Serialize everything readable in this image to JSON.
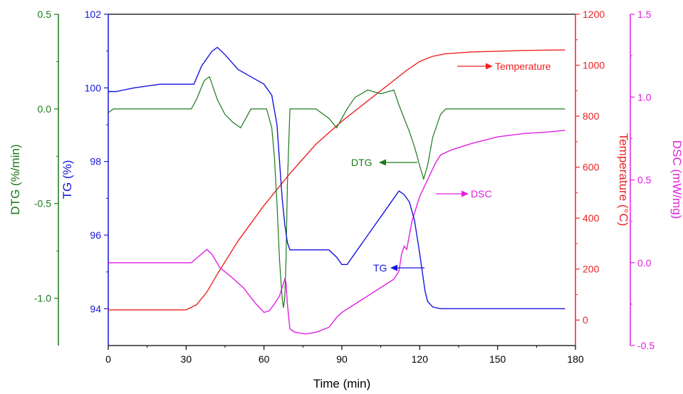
{
  "chart_data": {
    "type": "line",
    "xlabel": "Time (min)",
    "xlim": [
      0,
      180
    ],
    "x_ticks": [
      "0",
      "30",
      "60",
      "90",
      "120",
      "150",
      "180"
    ],
    "colors": {
      "DTG": "#1a7a1a",
      "TG": "#1515e0",
      "Temperature": "#ee2222",
      "DSC": "#e020e0"
    },
    "axes": {
      "DTG": {
        "label": "DTG (%/min)",
        "lim": [
          -1.25,
          0.5
        ],
        "ticks": [
          "0.5",
          "0.0",
          "-0.5",
          "-1.0"
        ],
        "tick_values": [
          0.5,
          0.0,
          -0.5,
          -1.0
        ]
      },
      "TG": {
        "label": "TG (%)",
        "lim": [
          93,
          102
        ],
        "ticks": [
          "102",
          "100",
          "98",
          "96",
          "94"
        ],
        "tick_values": [
          102,
          100,
          98,
          96,
          94
        ]
      },
      "Temperature": {
        "label": "Temperature (°C)",
        "lim": [
          -100,
          1200
        ],
        "ticks": [
          "1200",
          "1000",
          "800",
          "600",
          "400",
          "200",
          "0"
        ],
        "tick_values": [
          1200,
          1000,
          800,
          600,
          400,
          200,
          0
        ]
      },
      "DSC": {
        "label": "DSC (mW/mg)",
        "lim": [
          -0.5,
          1.5
        ],
        "ticks": [
          "1.5",
          "1.0",
          "0.5",
          "0.0",
          "-0.5"
        ],
        "tick_values": [
          1.5,
          1.0,
          0.5,
          0.0,
          -0.5
        ]
      }
    },
    "series": [
      {
        "name": "TG",
        "axis": "TG",
        "x": [
          0,
          3,
          10,
          20,
          33,
          36,
          40,
          42,
          45,
          50,
          55,
          60,
          63,
          65,
          66,
          67,
          68,
          69,
          70,
          75,
          80,
          85,
          88,
          90,
          92,
          95,
          100,
          105,
          110,
          112,
          114,
          116,
          118,
          120,
          121,
          122,
          123,
          125,
          128,
          130,
          140,
          150,
          160,
          176
        ],
        "y": [
          99.9,
          99.9,
          100.0,
          100.1,
          100.1,
          100.6,
          101.0,
          101.1,
          100.9,
          100.5,
          100.3,
          100.1,
          99.8,
          99.0,
          98.0,
          97.0,
          96.3,
          95.8,
          95.6,
          95.6,
          95.6,
          95.6,
          95.4,
          95.2,
          95.2,
          95.5,
          96.0,
          96.5,
          97.0,
          97.2,
          97.1,
          96.9,
          96.4,
          95.5,
          95.0,
          94.5,
          94.2,
          94.05,
          94.0,
          94.0,
          94.0,
          94.0,
          94.0,
          94.0
        ]
      },
      {
        "name": "DTG",
        "axis": "DTG",
        "x": [
          0,
          2,
          10,
          20,
          32,
          34,
          37,
          39,
          42,
          45,
          48,
          51,
          55,
          58,
          61,
          63,
          64,
          65,
          66,
          67,
          67.5,
          68,
          68.5,
          69,
          70,
          72,
          80,
          85,
          88,
          90,
          92,
          95,
          100,
          105,
          110,
          112,
          114,
          116,
          118,
          120,
          121.5,
          123,
          125,
          128,
          130,
          140,
          150,
          160,
          170,
          176
        ],
        "y": [
          -0.02,
          0.0,
          0.0,
          0.0,
          0.0,
          0.05,
          0.15,
          0.17,
          0.05,
          -0.03,
          -0.07,
          -0.1,
          0.0,
          0.0,
          0.0,
          -0.1,
          -0.25,
          -0.5,
          -0.8,
          -1.0,
          -1.05,
          -1.0,
          -0.8,
          -0.4,
          0.0,
          0.0,
          0.0,
          -0.05,
          -0.1,
          -0.05,
          0.0,
          0.06,
          0.1,
          0.08,
          0.1,
          0.02,
          -0.05,
          -0.12,
          -0.2,
          -0.3,
          -0.37,
          -0.3,
          -0.15,
          -0.03,
          0.0,
          0.0,
          0.0,
          0.0,
          0.0,
          0.0
        ]
      },
      {
        "name": "Temperature",
        "axis": "Temperature",
        "x": [
          0,
          30,
          34,
          38,
          42,
          50,
          60,
          70,
          80,
          90,
          100,
          110,
          115,
          120,
          125,
          130,
          140,
          150,
          160,
          176
        ],
        "y": [
          40,
          40,
          60,
          110,
          180,
          310,
          450,
          575,
          690,
          780,
          860,
          940,
          980,
          1015,
          1035,
          1045,
          1052,
          1055,
          1058,
          1060
        ]
      },
      {
        "name": "DSC",
        "axis": "DSC",
        "x": [
          0,
          10,
          20,
          32,
          35,
          38,
          40,
          43,
          47,
          52,
          57,
          60,
          62,
          64,
          66,
          67,
          68,
          68.5,
          69,
          70,
          72,
          76,
          80,
          85,
          88,
          90,
          95,
          100,
          105,
          108,
          110,
          112,
          113,
          114,
          115,
          117,
          120,
          123,
          126,
          128,
          132,
          140,
          150,
          160,
          170,
          176
        ],
        "y": [
          0.0,
          0.0,
          0.0,
          0.0,
          0.04,
          0.08,
          0.05,
          -0.03,
          -0.08,
          -0.15,
          -0.25,
          -0.3,
          -0.29,
          -0.25,
          -0.2,
          -0.15,
          -0.1,
          -0.12,
          -0.25,
          -0.4,
          -0.42,
          -0.43,
          -0.42,
          -0.39,
          -0.33,
          -0.3,
          -0.25,
          -0.2,
          -0.15,
          -0.12,
          -0.1,
          -0.05,
          0.05,
          0.1,
          0.08,
          0.25,
          0.4,
          0.5,
          0.6,
          0.65,
          0.68,
          0.72,
          0.76,
          0.78,
          0.79,
          0.8
        ]
      }
    ],
    "annotations": [
      {
        "text": "Temperature",
        "series": "Temperature",
        "arrow": "right"
      },
      {
        "text": "DTG",
        "series": "DTG",
        "arrow": "left"
      },
      {
        "text": "DSC",
        "series": "DSC",
        "arrow": "right"
      },
      {
        "text": "TG",
        "series": "TG",
        "arrow": "left"
      }
    ]
  }
}
